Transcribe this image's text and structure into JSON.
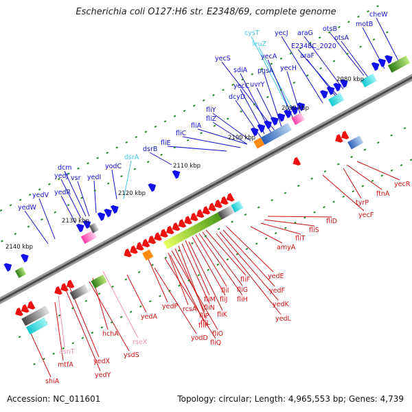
{
  "title": "Escherichia coli O127:H6 str. E2348/69, complete genome",
  "footer": {
    "accession": "Accession: NC_011601",
    "topology": "Topology: circular; Length: 4,965,553 bp; Genes: 4,739"
  },
  "colors": {
    "forward_label": "#1010cc",
    "reverse_label": "#cc1010",
    "light_blue_label": "#44c8e8",
    "pink_label": "#f090b8",
    "backbone": "#888888",
    "forward_arrow": "#1010ee",
    "reverse_arrow": "#ee1010",
    "tick_dot": "#228822"
  },
  "scale_labels": [
    "2080 kbp",
    "2090 kbp",
    "2100 kbp",
    "2110 kbp",
    "2120 kbp",
    "2130 kbp",
    "2140 kbp"
  ],
  "forward_genes": [
    {
      "name": "cheW",
      "color": "blue"
    },
    {
      "name": "motB",
      "color": "blue"
    },
    {
      "name": "otsB",
      "color": "blue"
    },
    {
      "name": "otsA",
      "color": "blue"
    },
    {
      "name": "araG",
      "color": "blue"
    },
    {
      "name": "E2348C_2020",
      "color": "blue"
    },
    {
      "name": "araF",
      "color": "blue"
    },
    {
      "name": "yecJ",
      "color": "blue"
    },
    {
      "name": "cysT",
      "color": "light-blue"
    },
    {
      "name": "leuZ",
      "color": "light-blue"
    },
    {
      "name": "yecA",
      "color": "blue"
    },
    {
      "name": "yecH",
      "color": "blue"
    },
    {
      "name": "yecS",
      "color": "blue"
    },
    {
      "name": "sdiA",
      "color": "blue"
    },
    {
      "name": "pgsA",
      "color": "blue"
    },
    {
      "name": "yecC",
      "color": "blue"
    },
    {
      "name": "uvrY",
      "color": "blue"
    },
    {
      "name": "dcyD",
      "color": "blue"
    },
    {
      "name": "fliY",
      "color": "blue"
    },
    {
      "name": "fliZ",
      "color": "blue"
    },
    {
      "name": "fliA",
      "color": "blue"
    },
    {
      "name": "fliC",
      "color": "blue"
    },
    {
      "name": "fliE",
      "color": "blue"
    },
    {
      "name": "dsrB",
      "color": "blue"
    },
    {
      "name": "dsrA",
      "color": "light-blue"
    },
    {
      "name": "yodC",
      "color": "blue"
    },
    {
      "name": "dcm",
      "color": "blue"
    },
    {
      "name": "yedJ",
      "color": "blue"
    },
    {
      "name": "vsr",
      "color": "blue"
    },
    {
      "name": "yedI",
      "color": "blue"
    },
    {
      "name": "yedR",
      "color": "blue"
    },
    {
      "name": "yedV",
      "color": "blue"
    },
    {
      "name": "yedW",
      "color": "blue"
    }
  ],
  "reverse_genes": [
    {
      "name": "yecR",
      "color": "red"
    },
    {
      "name": "ftnA",
      "color": "red"
    },
    {
      "name": "tyrP",
      "color": "red"
    },
    {
      "name": "yecF",
      "color": "red"
    },
    {
      "name": "fliD",
      "color": "red"
    },
    {
      "name": "fliS",
      "color": "red"
    },
    {
      "name": "fliT",
      "color": "red"
    },
    {
      "name": "amyA",
      "color": "red"
    },
    {
      "name": "yedE",
      "color": "red"
    },
    {
      "name": "yedF",
      "color": "red"
    },
    {
      "name": "yedK",
      "color": "red"
    },
    {
      "name": "yedL",
      "color": "red"
    },
    {
      "name": "fliF",
      "color": "red"
    },
    {
      "name": "fliG",
      "color": "red"
    },
    {
      "name": "fliH",
      "color": "red"
    },
    {
      "name": "fliI",
      "color": "red"
    },
    {
      "name": "fliJ",
      "color": "red"
    },
    {
      "name": "fliM",
      "color": "red"
    },
    {
      "name": "fliK",
      "color": "red"
    },
    {
      "name": "fliN",
      "color": "red"
    },
    {
      "name": "fliL",
      "color": "red"
    },
    {
      "name": "fliP",
      "color": "red"
    },
    {
      "name": "fliO",
      "color": "red"
    },
    {
      "name": "rcsA",
      "color": "red"
    },
    {
      "name": "fliR",
      "color": "red"
    },
    {
      "name": "fliQ",
      "color": "red"
    },
    {
      "name": "yedP",
      "color": "red"
    },
    {
      "name": "yodD",
      "color": "red"
    },
    {
      "name": "yedA",
      "color": "red"
    },
    {
      "name": "rseX",
      "color": "pink"
    },
    {
      "name": "hchA",
      "color": "red"
    },
    {
      "name": "ysdS",
      "color": "red"
    },
    {
      "name": "yedX",
      "color": "red"
    },
    {
      "name": "yedY",
      "color": "red"
    },
    {
      "name": "asnT",
      "color": "pink"
    },
    {
      "name": "mtfA",
      "color": "red"
    },
    {
      "name": "shiA",
      "color": "red"
    }
  ]
}
